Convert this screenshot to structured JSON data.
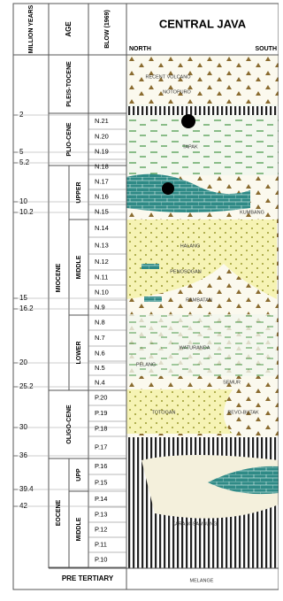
{
  "header": {
    "million_years": "MILLION YEARS",
    "age": "AGE",
    "blow": "BLOW (1969)",
    "title": "CENTRAL JAVA",
    "north": "NORTH",
    "south": "SOUTH"
  },
  "million_years": [
    "2",
    "5",
    "5.2",
    "10",
    "10.2",
    "15",
    "16.2",
    "20",
    "25.2",
    "30",
    "36",
    "39.4",
    "42"
  ],
  "epochs": [
    "PLEIS-TOCENE",
    "PLIO-CENE",
    "MIOCENE",
    "OLIGO-CENE",
    "EOCENE"
  ],
  "subepochs": [
    "UPPER",
    "MIDDLE",
    "LOWER",
    "UPP",
    "MIDDLE"
  ],
  "blow_zones": [
    "N.21",
    "N.20",
    "N.19",
    "N.18",
    "N.17",
    "N.16",
    "N.15",
    "N.14",
    "N.13",
    "N.12",
    "N.11",
    "N.10",
    "N.9",
    "N.8",
    "N.7",
    "N.6",
    "N.5",
    "N.4",
    "P.20",
    "P.19",
    "P.18",
    "P.17",
    "P.16",
    "P.15",
    "P.14",
    "P.13",
    "P.12",
    "P.11",
    "P.10"
  ],
  "pre_tertiary": "PRE TERTIARY",
  "formations": [
    "RECENT VOLCANO",
    "NOTOPURO",
    "TAPAK",
    "KUMBANG",
    "HALANG",
    "PENOSOGAN",
    "RAMBATAN",
    "WATURANDA",
    "PELANG",
    "SEMUR",
    "TOTOGAN",
    "REVO-BUTAK",
    "KARANGSAMBUNG",
    "MELANGE"
  ]
}
